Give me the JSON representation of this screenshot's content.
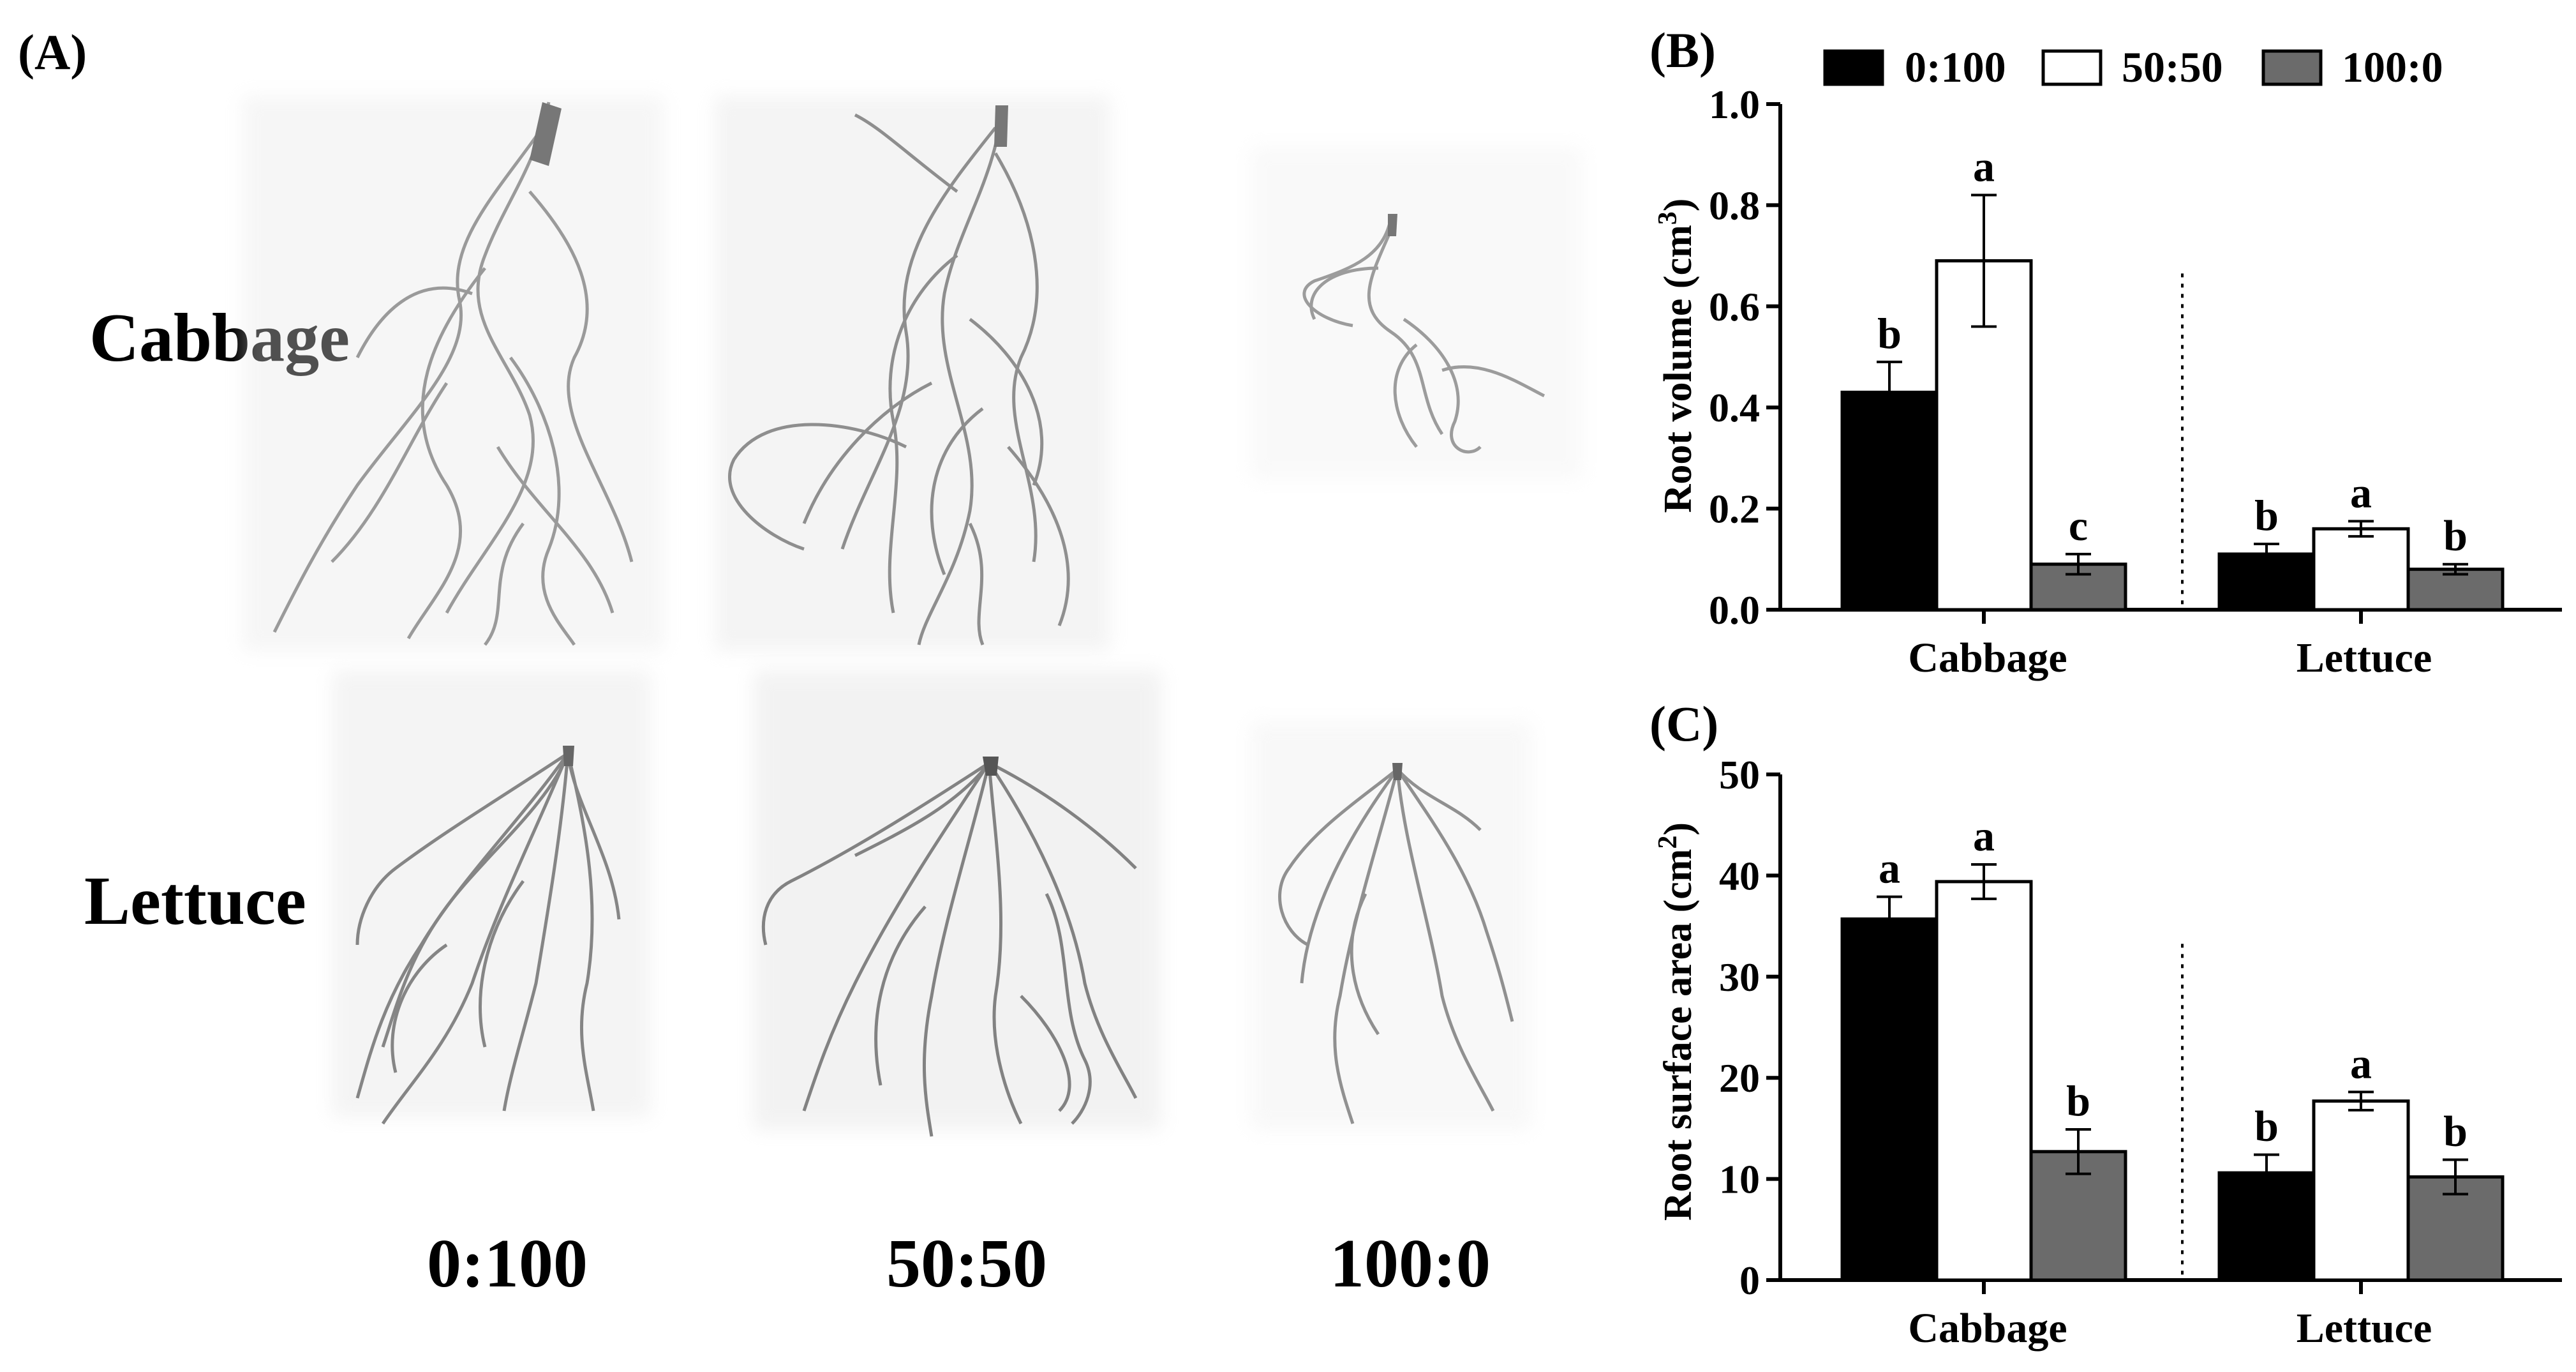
{
  "panel_a": {
    "label": "(A)",
    "rows": [
      "Cabbage",
      "Lettuce"
    ],
    "columns": [
      "0:100",
      "50:50",
      "100:0"
    ]
  },
  "chart_data": [
    {
      "panel": "(B)",
      "type": "bar",
      "ylabel_main": "Root volume (cm",
      "ylabel_sup": "3",
      "ylabel_tail": ")",
      "ylim": [
        0,
        1.0
      ],
      "yticks": [
        "0.0",
        "0.2",
        "0.4",
        "0.6",
        "0.8",
        "1.0"
      ],
      "yvalues": [
        0,
        0.2,
        0.4,
        0.6,
        0.8,
        1.0
      ],
      "categories": [
        "Cabbage",
        "Lettuce"
      ],
      "series": [
        {
          "name": "0:100",
          "color": "#000000",
          "values": [
            0.43,
            0.11
          ],
          "errors": [
            0.06,
            0.02
          ],
          "letters": [
            "b",
            "b"
          ]
        },
        {
          "name": "50:50",
          "color": "#ffffff",
          "values": [
            0.69,
            0.16
          ],
          "errors": [
            0.13,
            0.015
          ],
          "letters": [
            "a",
            "a"
          ]
        },
        {
          "name": "100:0",
          "color": "#6b6b6b",
          "values": [
            0.09,
            0.08
          ],
          "errors": [
            0.02,
            0.01
          ],
          "letters": [
            "c",
            "b"
          ]
        }
      ],
      "legend": "top"
    },
    {
      "panel": "(C)",
      "type": "bar",
      "ylabel_main": "Root surface area (cm",
      "ylabel_sup": "2",
      "ylabel_tail": ")",
      "ylim": [
        0,
        50
      ],
      "yticks": [
        "0",
        "10",
        "20",
        "30",
        "40",
        "50"
      ],
      "yvalues": [
        0,
        10,
        20,
        30,
        40,
        50
      ],
      "categories": [
        "Cabbage",
        "Lettuce"
      ],
      "series": [
        {
          "name": "0:100",
          "color": "#000000",
          "values": [
            35.7,
            10.6
          ],
          "errors": [
            2.2,
            1.8
          ],
          "letters": [
            "a",
            "b"
          ]
        },
        {
          "name": "50:50",
          "color": "#ffffff",
          "values": [
            39.4,
            17.7
          ],
          "errors": [
            1.7,
            0.9
          ],
          "letters": [
            "a",
            "a"
          ]
        },
        {
          "name": "100:0",
          "color": "#6b6b6b",
          "values": [
            12.7,
            10.2
          ],
          "errors": [
            2.2,
            1.7
          ],
          "letters": [
            "b",
            "b"
          ]
        }
      ]
    }
  ]
}
